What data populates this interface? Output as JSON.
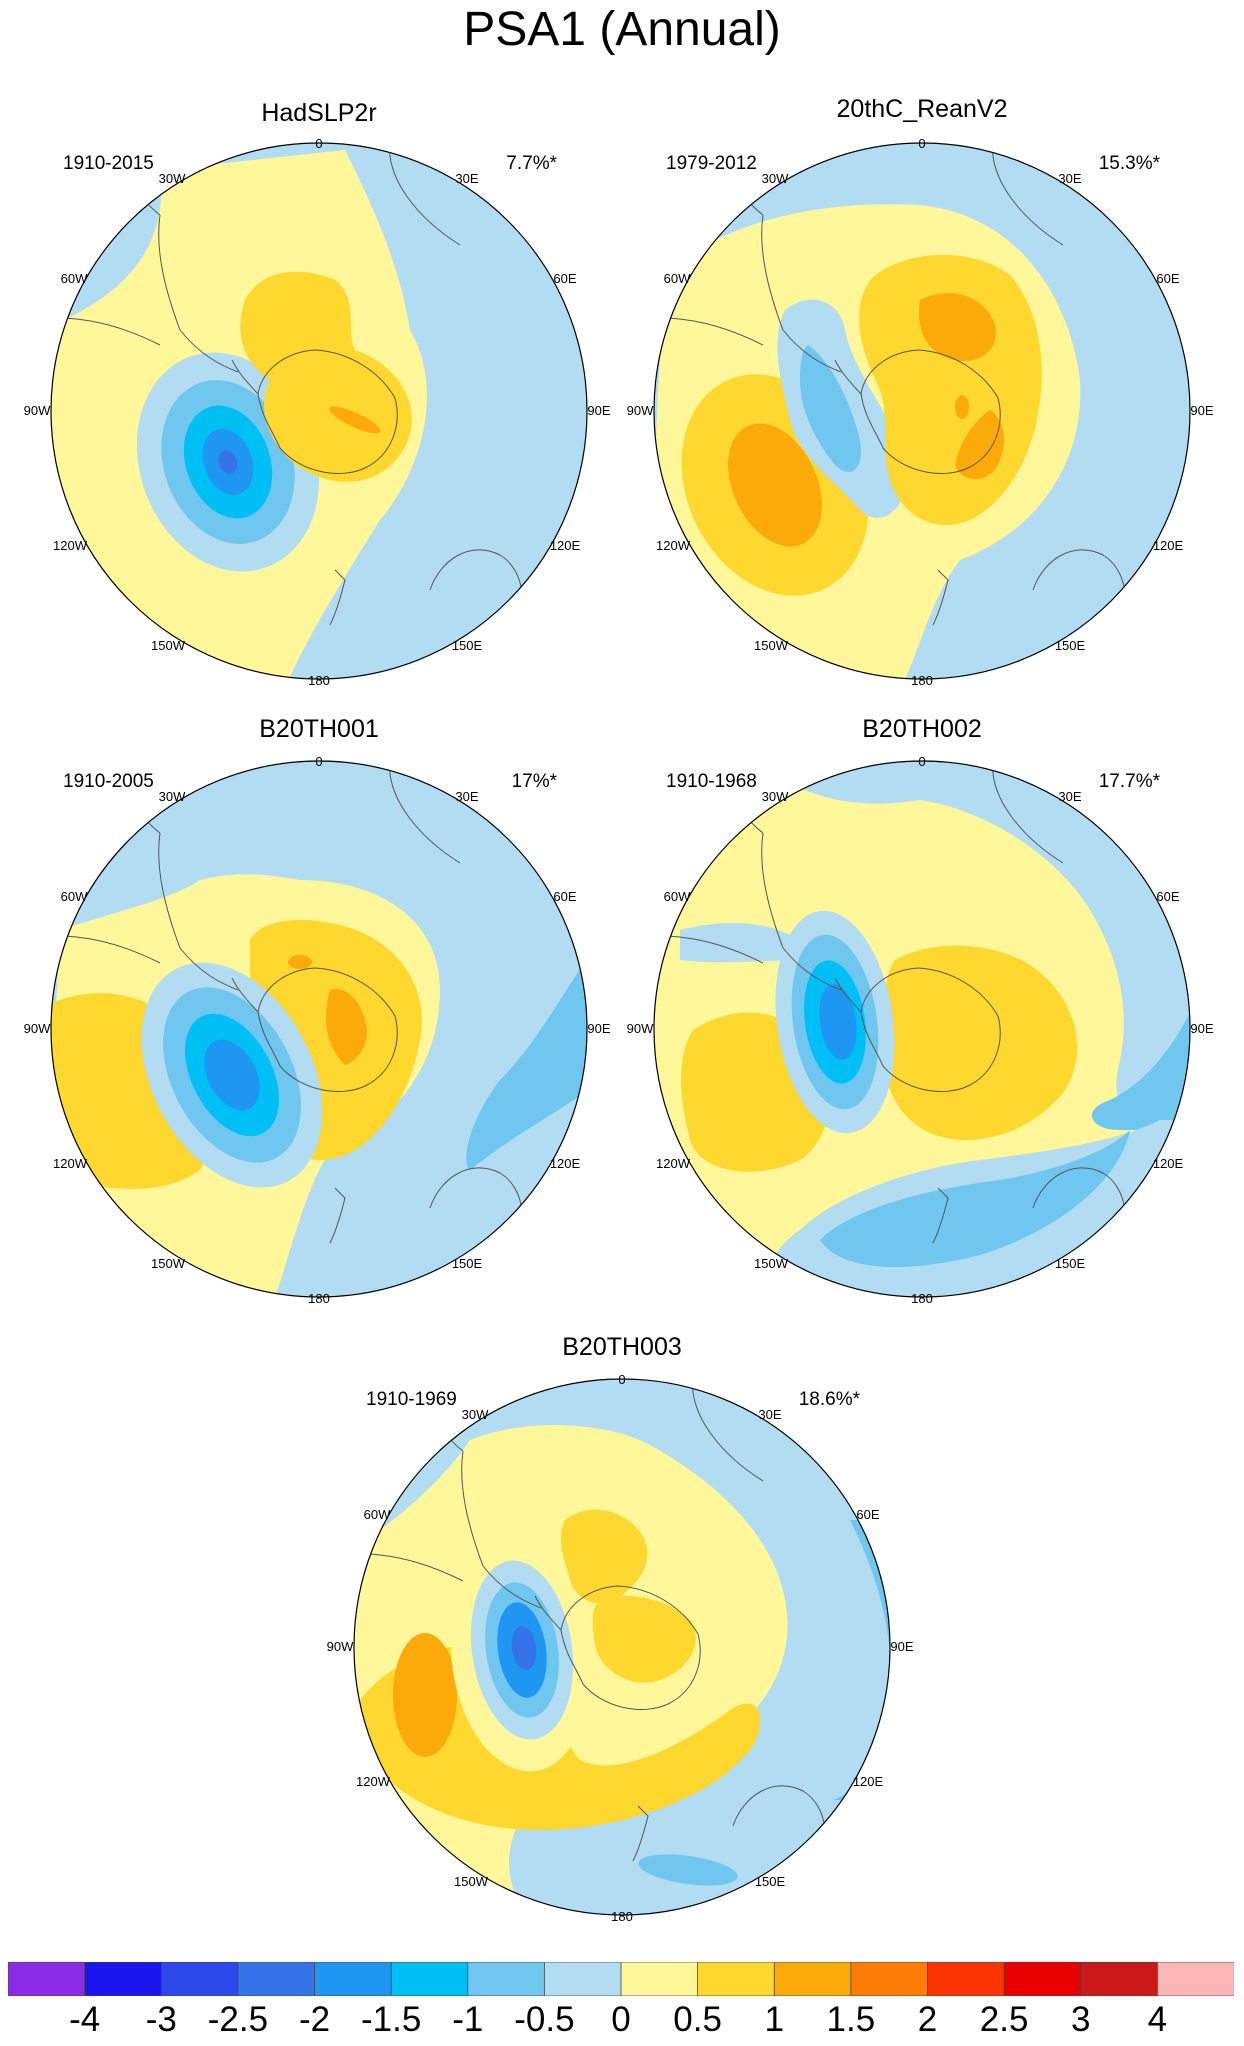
{
  "title": "PSA1 (Annual)",
  "panels": [
    {
      "id": "hadslp2r",
      "name": "HadSLP2r",
      "range": "1910-2015",
      "percent": "7.7%*"
    },
    {
      "id": "20thc-reanv2",
      "name": "20thC_ReanV2",
      "range": "1979-2012",
      "percent": "15.3%*"
    },
    {
      "id": "b20th001",
      "name": "B20TH001",
      "range": "1910-2005",
      "percent": "17%*"
    },
    {
      "id": "b20th002",
      "name": "B20TH002",
      "range": "1910-1968",
      "percent": "17.7%*"
    },
    {
      "id": "b20th003",
      "name": "B20TH003",
      "range": "1910-1969",
      "percent": "18.6%*"
    }
  ],
  "longitude_labels": [
    "0",
    "30E",
    "60E",
    "90E",
    "120E",
    "150E",
    "180",
    "150W",
    "120W",
    "90W",
    "60W",
    "30W"
  ],
  "colorbar": {
    "labels": [
      "-4",
      "-3",
      "-2.5",
      "-2",
      "-1.5",
      "-1",
      "-0.5",
      "0",
      "0.5",
      "1",
      "1.5",
      "2",
      "2.5",
      "3",
      "4"
    ],
    "colors": [
      "#8a2be8",
      "#1b16f0",
      "#2a49e8",
      "#3573e8",
      "#1f96f2",
      "#00bff5",
      "#6fc6ef",
      "#b2dcf1",
      "#fff799",
      "#fed72f",
      "#fcaa0a",
      "#fb7d05",
      "#fb3303",
      "#ea0000",
      "#cb1818",
      "#fbb6b6"
    ]
  }
}
